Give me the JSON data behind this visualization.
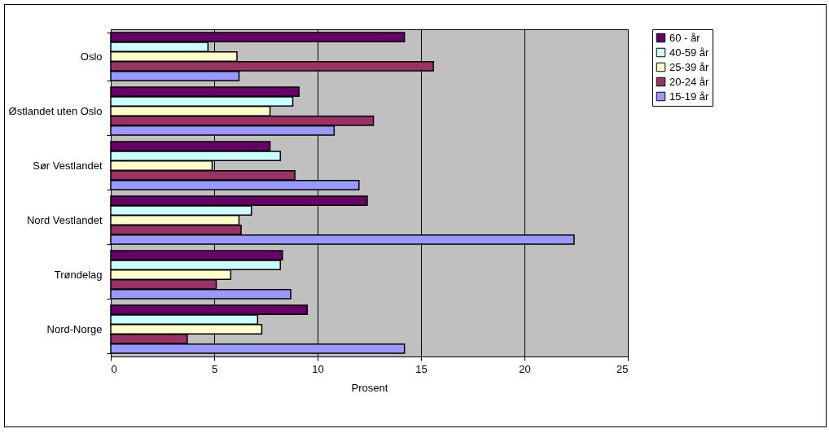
{
  "chart_data": {
    "type": "bar",
    "orientation": "horizontal",
    "xlabel": "Prosent",
    "categories": [
      "Oslo",
      "Østlandet uten Oslo",
      "Sør Vestlandet",
      "Nord Vestlandet",
      "Trøndelag",
      "Nord-Norge"
    ],
    "series": [
      {
        "name": "60 - år",
        "color": "#660066",
        "values": [
          14.2,
          9.1,
          7.7,
          12.4,
          8.3,
          9.5
        ]
      },
      {
        "name": "40-59 år",
        "color": "#ccffff",
        "values": [
          4.7,
          8.8,
          8.2,
          6.8,
          8.2,
          7.1
        ]
      },
      {
        "name": "25-39 år",
        "color": "#ffffcc",
        "values": [
          6.1,
          7.7,
          4.9,
          6.2,
          5.8,
          7.3
        ]
      },
      {
        "name": "20-24 år",
        "color": "#993366",
        "values": [
          15.6,
          12.7,
          8.9,
          6.3,
          5.1,
          3.7
        ]
      },
      {
        "name": "15-19 år",
        "color": "#9999ff",
        "values": [
          6.2,
          10.8,
          12.0,
          22.4,
          8.7,
          14.2
        ]
      }
    ],
    "xlim": [
      0,
      25
    ],
    "xticks": [
      0,
      5,
      10,
      15,
      20,
      25
    ],
    "grid": "x",
    "legend": "right"
  }
}
